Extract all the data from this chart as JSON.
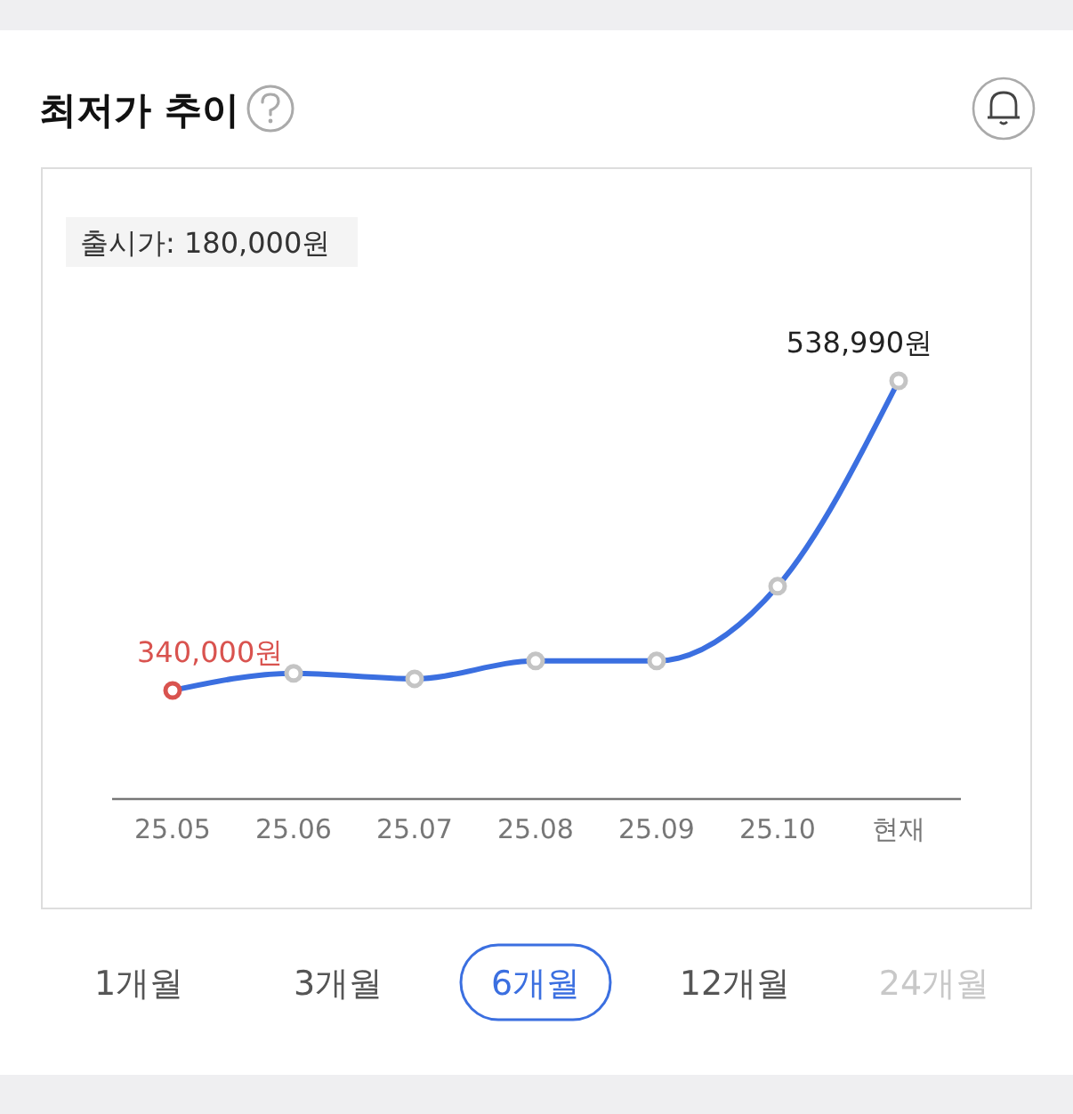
{
  "chart_data": {
    "type": "line",
    "title": "최저가 추이",
    "categories": [
      "25.05",
      "25.06",
      "25.07",
      "25.08",
      "25.09",
      "25.10",
      "현재"
    ],
    "series": [
      {
        "color": "#3b6fe0",
        "values": [
          340000,
          351000,
          347500,
          359000,
          359000,
          407000,
          538990
        ],
        "colors": [
          "#d9534f",
          "#c4c4c4",
          "#c4c4c4",
          "#c4c4c4",
          "#c4c4c4",
          "#c4c4c4",
          "#c4c4c4"
        ],
        "value_labels": [
          "340,000원",
          null,
          null,
          null,
          null,
          null,
          "538,990원"
        ]
      }
    ],
    "marker": "circle",
    "line_style": "solid",
    "tick_labels": "x",
    "annotations": [
      "출시가: 180,000원",
      "1개월",
      "3개월",
      "6개월",
      "12개월",
      "24개월"
    ]
  }
}
